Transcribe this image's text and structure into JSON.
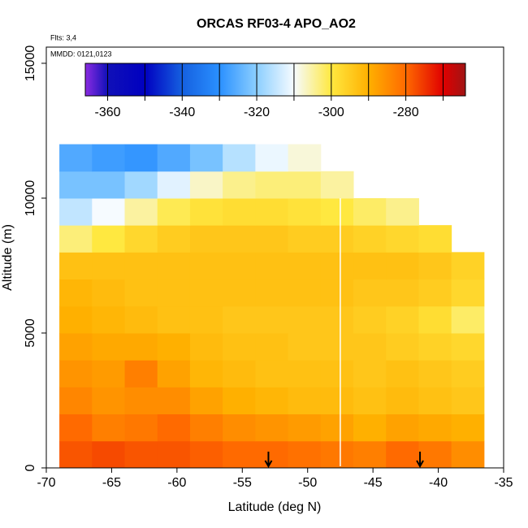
{
  "chart_data": {
    "type": "heatmap",
    "title": "ORCAS RF03-4 APO_AO2",
    "flights_label": "Flts: 3,4",
    "dates_label": "MMDD: 0121,0123",
    "x_label": "Latitude (deg N)",
    "y_label": "Altitude (m)",
    "xlim": [
      -70,
      -35
    ],
    "ylim": [
      0,
      15600
    ],
    "xticks": [
      -70,
      -65,
      -60,
      -55,
      -50,
      -45,
      -40,
      -35
    ],
    "yticks": [
      0,
      5000,
      10000,
      15000
    ],
    "x_edges": [
      -69,
      -66.5,
      -64,
      -61.5,
      -59,
      -56.5,
      -54,
      -51.5,
      -49,
      -46.5,
      -44,
      -41.5,
      -39,
      -36.5
    ],
    "y_edges": [
      0,
      1000,
      2000,
      3000,
      4000,
      5000,
      6000,
      7000,
      8000,
      9000,
      10000,
      11000,
      12000
    ],
    "z": [
      [
        -278,
        -277,
        -278,
        -278,
        -279,
        -280,
        -280,
        -281,
        -282,
        -283,
        -280,
        -282,
        -285
      ],
      [
        -280,
        -283,
        -282,
        -280,
        -283,
        -285,
        -286,
        -287,
        -288,
        -290,
        -288,
        -289,
        -290
      ],
      [
        -284,
        -286,
        -285,
        -285,
        -288,
        -290,
        -291,
        -292,
        -292,
        -293,
        -292,
        -293,
        -294
      ],
      [
        -286,
        -287,
        -283,
        -288,
        -291,
        -292,
        -293,
        -293,
        -293,
        -294,
        -293,
        -294,
        -295
      ],
      [
        -288,
        -289,
        -289,
        -290,
        -292,
        -293,
        -293,
        -294,
        -294,
        -294,
        -295,
        -296,
        -297
      ],
      [
        -290,
        -291,
        -292,
        -293,
        -293,
        -294,
        -294,
        -294,
        -294,
        -295,
        -296,
        -298,
        -302
      ],
      [
        -291,
        -292,
        -293,
        -293,
        -293,
        -293,
        -293,
        -293,
        -293,
        -294,
        -294,
        -295,
        -297
      ],
      [
        -293,
        -293,
        -293,
        -293,
        -293,
        -293,
        -293,
        -293,
        -293,
        -293,
        -293,
        -294,
        -296
      ],
      [
        -303,
        -300,
        -297,
        -295,
        -294,
        -294,
        -294,
        -295,
        -295,
        -296,
        -297,
        -298,
        null
      ],
      [
        -315,
        -310,
        -305,
        -301,
        -299,
        -298,
        -298,
        -299,
        -300,
        -302,
        -304,
        null,
        null
      ],
      [
        -322,
        -322,
        -318,
        -312,
        -307,
        -304,
        -303,
        -303,
        -305,
        null,
        null,
        null,
        null
      ],
      [
        -326,
        -328,
        -329,
        -326,
        -322,
        -316,
        -311,
        -308,
        null,
        null,
        null,
        null,
        null
      ]
    ],
    "flight_boundary": -47.5,
    "arrows": [
      -53,
      -41.4
    ],
    "colorbar": {
      "lim": [
        -366,
        -264
      ],
      "ticks": [
        -360,
        -340,
        -320,
        -300,
        -280
      ],
      "stops": [
        -366,
        -360,
        -350,
        -340,
        -330,
        -320,
        -310,
        -300,
        -290,
        -280,
        -270,
        -264
      ],
      "colors": [
        "#8b2be2",
        "#1010b8",
        "#0000c0",
        "#1560e0",
        "#2a90ff",
        "#8ccfff",
        "#f6fbff",
        "#ffe840",
        "#ffb000",
        "#ff6a00",
        "#e00000",
        "#a01414"
      ]
    }
  }
}
